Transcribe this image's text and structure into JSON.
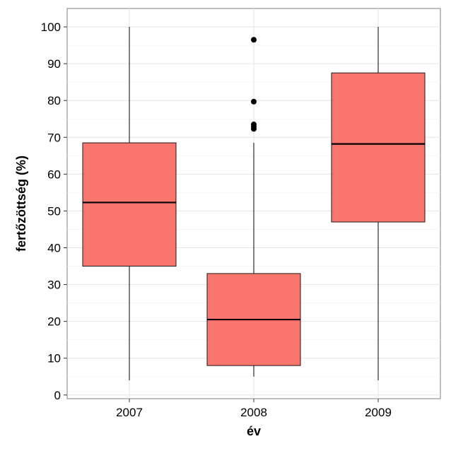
{
  "chart_data": {
    "type": "boxplot",
    "title": "",
    "xlabel": "év",
    "ylabel": "fertőzöttség (%)",
    "ylim": [
      -1,
      105
    ],
    "y_ticks": [
      0,
      10,
      20,
      30,
      40,
      50,
      60,
      70,
      80,
      90,
      100
    ],
    "y_tick_labels": [
      "0",
      "10",
      "20",
      "30",
      "40",
      "50",
      "60",
      "70",
      "80",
      "90",
      "100"
    ],
    "categories": [
      "2007",
      "2008",
      "2009"
    ],
    "grid": true,
    "legend": "none",
    "box_color": "#f8766d",
    "boxes": [
      {
        "category": "2007",
        "whisker_low": 4,
        "q1": 35,
        "median": 52.3,
        "q3": 68.5,
        "whisker_high": 100,
        "outliers": []
      },
      {
        "category": "2008",
        "whisker_low": 5,
        "q1": 8,
        "median": 20.5,
        "q3": 33,
        "whisker_high": 68.5,
        "outliers": [
          72.3,
          72.9,
          73.5,
          79.7,
          96.5
        ]
      },
      {
        "category": "2009",
        "whisker_low": 4,
        "q1": 47,
        "median": 68.2,
        "q3": 87.5,
        "whisker_high": 100,
        "outliers": []
      }
    ]
  }
}
